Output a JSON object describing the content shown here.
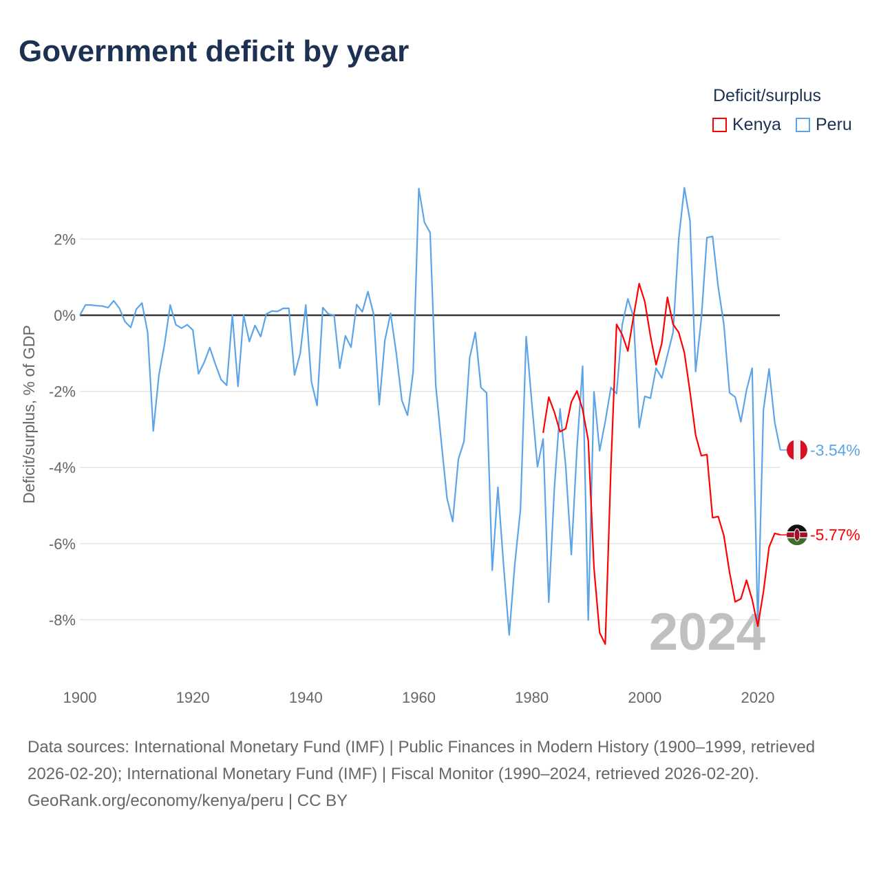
{
  "chart_data": {
    "type": "line",
    "title": "Government deficit by year",
    "ylabel": "Deficit/surplus, % of GDP",
    "xlabel": "",
    "xlim": [
      1900,
      2024
    ],
    "ylim": [
      -9,
      3.5
    ],
    "xticks": [
      1900,
      1920,
      1940,
      1960,
      1980,
      2000,
      2020
    ],
    "xtick_labels": [
      "1900",
      "1920",
      "1940",
      "1960",
      "1980",
      "2000",
      "2020"
    ],
    "yticks": [
      2,
      0,
      -2,
      -4,
      -6,
      -8
    ],
    "ytick_labels": [
      "2%",
      "0%",
      "-2%",
      "-4%",
      "-6%",
      "-8%"
    ],
    "grid": true,
    "legend_title": "Deficit/surplus",
    "legend_position": "top-right",
    "year_watermark": "2024",
    "series": [
      {
        "name": "Kenya",
        "color": "#ff0000",
        "end_label": "-5.77%",
        "start_year": 1982,
        "values": [
          -3.09,
          -2.15,
          -2.55,
          -3.06,
          -2.98,
          -2.28,
          -1.99,
          -2.48,
          -3.29,
          -6.64,
          -8.34,
          -8.64,
          -4.0,
          -0.24,
          -0.51,
          -0.94,
          -0.04,
          0.83,
          0.36,
          -0.54,
          -1.3,
          -0.74,
          0.47,
          -0.24,
          -0.45,
          -0.98,
          -2.01,
          -3.15,
          -3.69,
          -3.66,
          -5.32,
          -5.29,
          -5.79,
          -6.76,
          -7.53,
          -7.45,
          -6.96,
          -7.47,
          -8.17,
          -7.27,
          -6.09,
          -5.73,
          -5.77
        ]
      },
      {
        "name": "Peru",
        "color": "#5ba4e8",
        "end_label": "-3.54%",
        "start_year": 1900,
        "values": [
          0,
          0.27,
          0.27,
          0.25,
          0.24,
          0.2,
          0.38,
          0.18,
          -0.17,
          -0.32,
          0.16,
          0.32,
          -0.45,
          -3.04,
          -1.57,
          -0.76,
          0.27,
          -0.25,
          -0.34,
          -0.25,
          -0.39,
          -1.54,
          -1.24,
          -0.85,
          -1.29,
          -1.69,
          -1.84,
          0,
          -1.87,
          0,
          -0.69,
          -0.27,
          -0.56,
          0.03,
          0.11,
          0.1,
          0.18,
          0.18,
          -1.57,
          -1.01,
          0.27,
          -1.75,
          -2.37,
          0.2,
          0.03,
          0,
          -1.39,
          -0.54,
          -0.84,
          0.28,
          0.09,
          0.62,
          0.03,
          -2.35,
          -0.66,
          0.05,
          -0.99,
          -2.24,
          -2.63,
          -1.48,
          3.33,
          2.44,
          2.17,
          -1.84,
          -3.35,
          -4.81,
          -5.42,
          -3.78,
          -3.31,
          -1.12,
          -0.45,
          -1.9,
          -2.04,
          -6.7,
          -4.52,
          -6.56,
          -8.4,
          -6.53,
          -5.1,
          -0.56,
          -2.31,
          -3.98,
          -3.25,
          -7.54,
          -4.52,
          -2.46,
          -3.96,
          -6.29,
          -3.49,
          -1.34,
          -8.01,
          -2.01,
          -3.56,
          -2.79,
          -1.9,
          -2.06,
          -0.25,
          0.43,
          -0.04,
          -2.95,
          -2.13,
          -2.18,
          -1.39,
          -1.65,
          -1.05,
          -0.45,
          2.0,
          3.35,
          2.48,
          -1.48,
          -0.1,
          2.04,
          2.07,
          0.74,
          -0.24,
          -2.04,
          -2.15,
          -2.8,
          -1.97,
          -1.39,
          -8.17,
          -2.49,
          -1.41,
          -2.82,
          -3.54
        ]
      }
    ]
  },
  "footer": {
    "sources": "Data sources: International Monetary Fund (IMF) | Public Finances in Modern History (1900–1999, retrieved 2026-02-20); International Monetary Fund (IMF) | Fiscal Monitor (1990–2024, retrieved 2026-02-20).",
    "credit": "GeoRank.org/economy/kenya/peru | CC BY"
  }
}
